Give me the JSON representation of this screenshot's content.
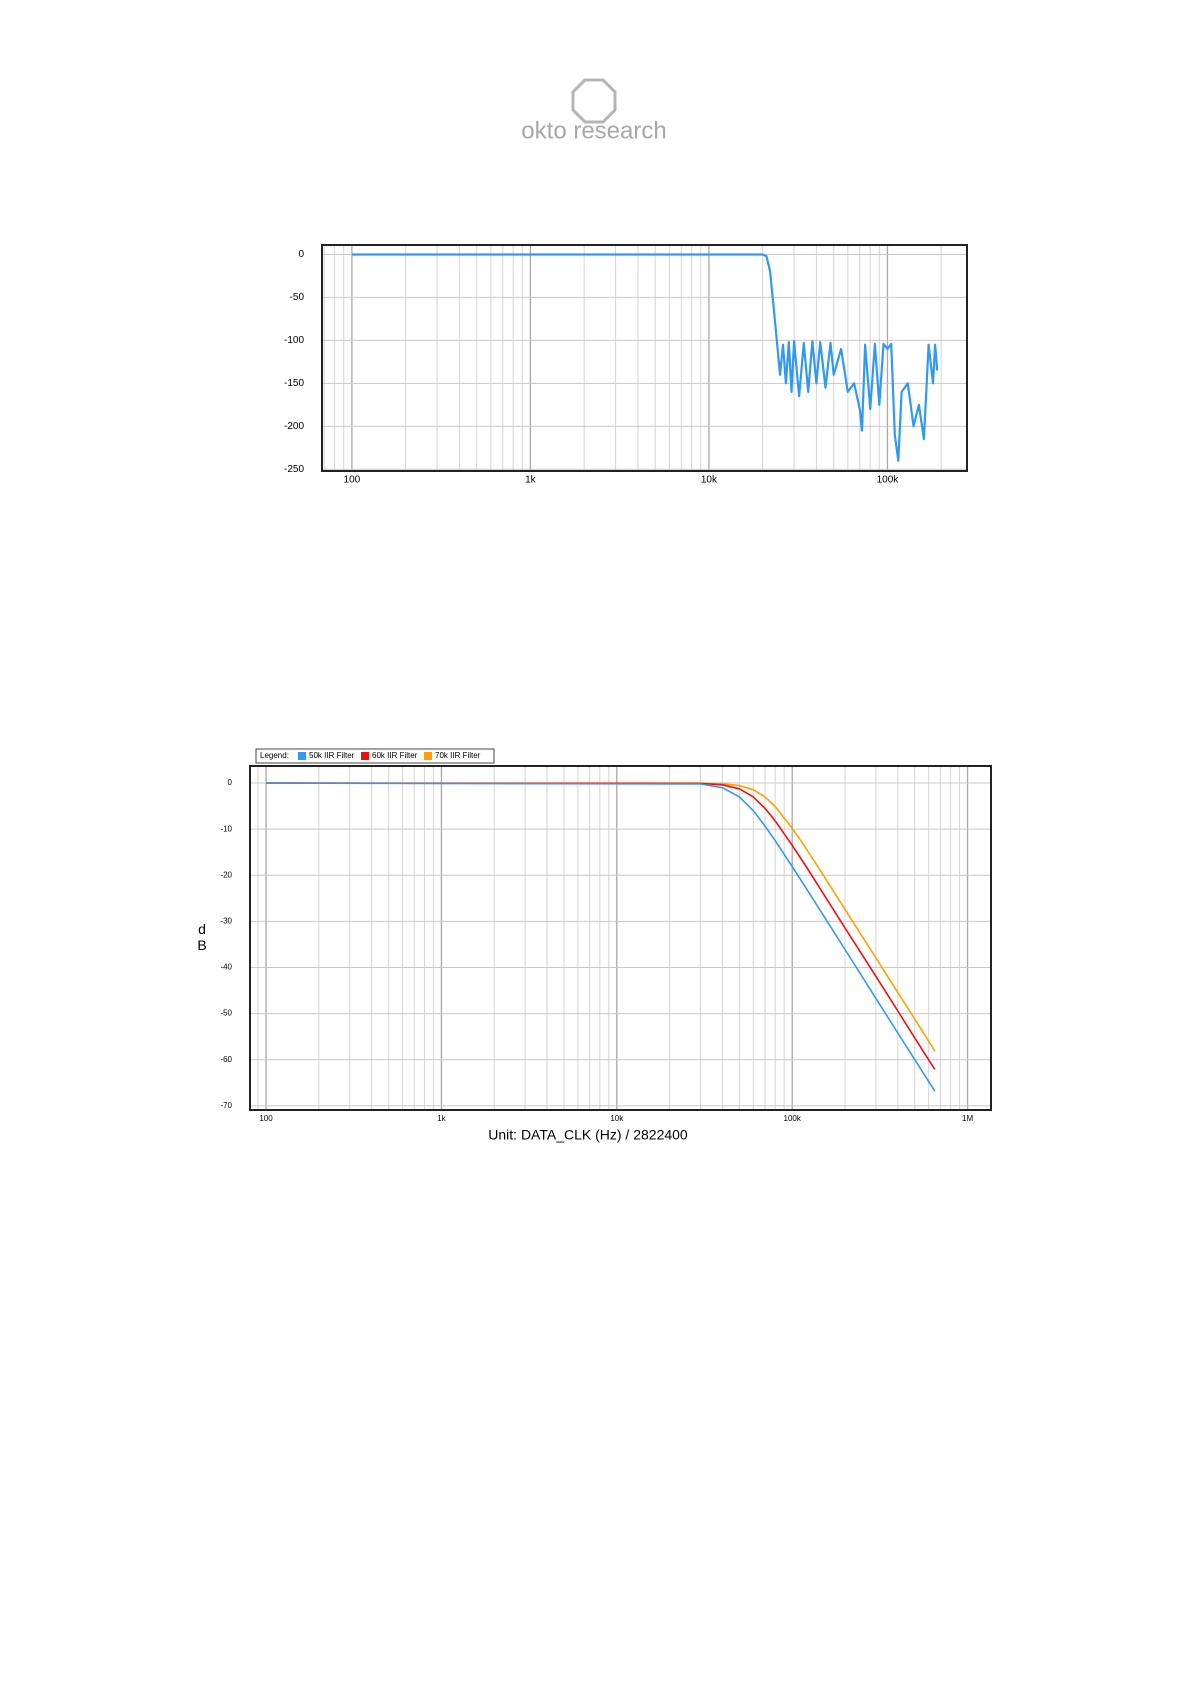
{
  "header": {
    "brand": "okto research"
  },
  "chart_data": [
    {
      "type": "line",
      "color": "#3399ee",
      "log_x": true,
      "grid": true,
      "minor_grid": true,
      "x": [
        100,
        20000,
        21000,
        22000,
        23000,
        24000,
        25000,
        26000,
        27000,
        28000,
        29000,
        30000,
        32000,
        34000,
        36000,
        38000,
        40000,
        42000,
        45000,
        48000,
        50000,
        55000,
        60000,
        65000,
        70000,
        72000,
        75000,
        80000,
        85000,
        90000,
        95000,
        100000,
        105000,
        110000,
        115000,
        120000,
        130000,
        140000,
        150000,
        160000,
        170000,
        180000,
        185000,
        190000
      ],
      "values": [
        0,
        0,
        -2,
        -20,
        -60,
        -100,
        -140,
        -105,
        -150,
        -102,
        -160,
        -101,
        -165,
        -103,
        -160,
        -101,
        -150,
        -102,
        -155,
        -103,
        -140,
        -110,
        -160,
        -150,
        -180,
        -205,
        -105,
        -180,
        -104,
        -175,
        -104,
        -110,
        -104,
        -210,
        -240,
        -160,
        -150,
        -200,
        -175,
        -215,
        -105,
        -150,
        -105,
        -135
      ],
      "xlim": [
        68,
        279000
      ],
      "ylim": [
        -252,
        11
      ],
      "xticks": [
        100,
        {
          "value": 1000,
          "label": "1k"
        },
        {
          "value": 10000,
          "label": "10k"
        },
        {
          "value": 100000,
          "label": "100k"
        }
      ],
      "yticks": [
        0,
        -50,
        -100,
        -150,
        -200,
        -250
      ]
    },
    {
      "type": "line",
      "log_x": true,
      "grid": true,
      "minor_grid": true,
      "legend_title": "Legend:",
      "legend": "top-left",
      "y_label": "dB",
      "x_label": "Unit: DATA_CLK (Hz) / 2822400",
      "x": [
        100,
        30000,
        40000,
        50000,
        60000,
        70000,
        80000,
        100000,
        120000,
        150000,
        200000,
        250000,
        300000,
        400000,
        500000,
        650000
      ],
      "series": [
        {
          "name": "50k IIR Filter",
          "color": "#3399ee",
          "values": [
            0,
            -0.2,
            -1.01,
            -3.01,
            -6.0,
            -9.31,
            -12.5,
            -18.1,
            -22.8,
            -28.6,
            -36.1,
            -41.9,
            -46.7,
            -54.2,
            -60.0,
            -66.8
          ]
        },
        {
          "name": "60k IIR Filter",
          "color": "#ee1111",
          "values": [
            0,
            -0.07,
            -0.37,
            -1.25,
            -3.01,
            -5.47,
            -8.21,
            -13.5,
            -18.1,
            -23.9,
            -31.4,
            -37.2,
            -41.9,
            -49.4,
            -55.3,
            -62.1
          ]
        },
        {
          "name": "70k IIR Filter",
          "color": "#ffa000",
          "values": [
            0,
            -0.03,
            -0.15,
            -0.54,
            -1.45,
            -3.01,
            -5.09,
            -9.78,
            -14.2,
            -19.9,
            -27.4,
            -33.2,
            -37.9,
            -45.4,
            -51.2,
            -58.1
          ]
        }
      ],
      "xlim": [
        81,
        1360000
      ],
      "ylim": [
        -70.9,
        3.7
      ],
      "xticks": [
        100,
        {
          "value": 1000,
          "label": "1k"
        },
        {
          "value": 10000,
          "label": "10k"
        },
        {
          "value": 100000,
          "label": "100k"
        },
        {
          "value": 1000000,
          "label": "1M"
        }
      ],
      "yticks": [
        0,
        -10,
        -20,
        -30,
        -40,
        -50,
        -60,
        -70
      ]
    }
  ]
}
